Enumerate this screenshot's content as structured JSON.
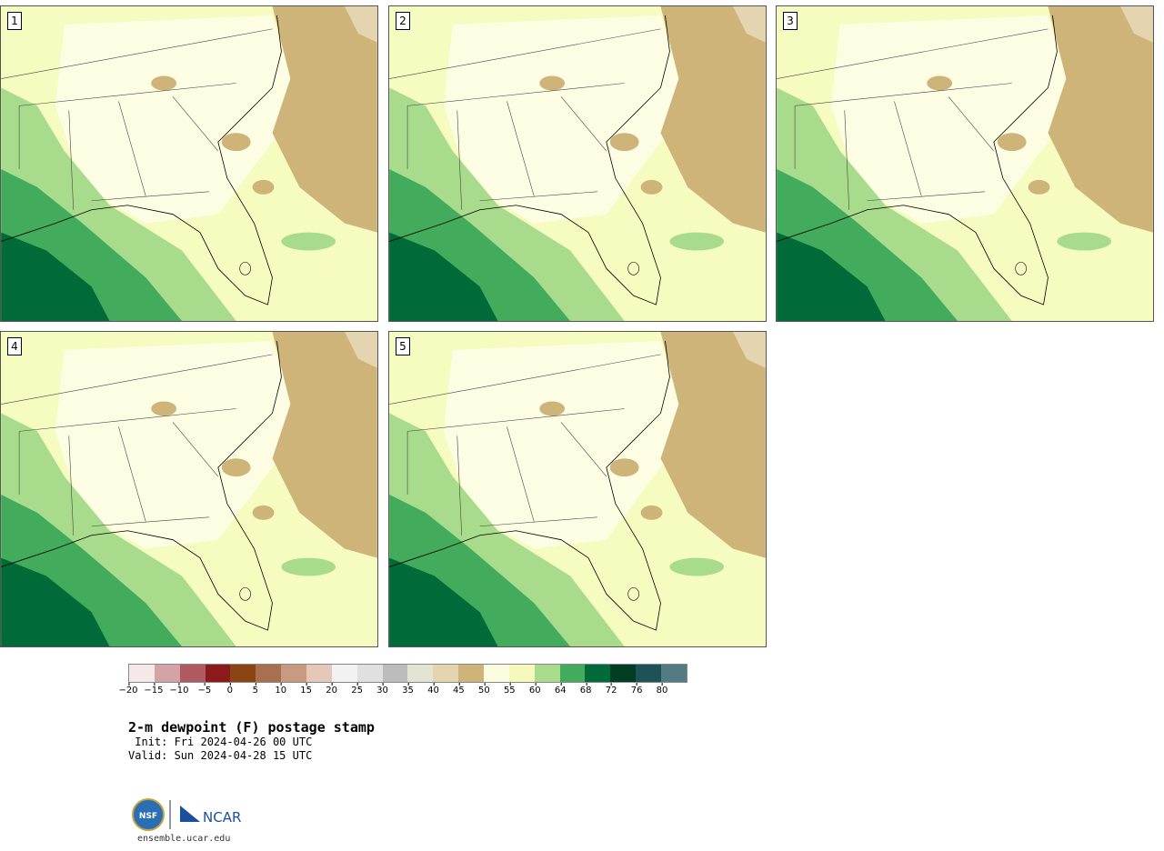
{
  "panels": [
    {
      "label": "1"
    },
    {
      "label": "2"
    },
    {
      "label": "3"
    },
    {
      "label": "4"
    },
    {
      "label": "5"
    }
  ],
  "colorbar": {
    "colors": [
      "#f5e8e8",
      "#d4a3a6",
      "#b05a60",
      "#8b1a1a",
      "#8b4513",
      "#a8704e",
      "#c89a80",
      "#e5c8b8",
      "#f2f2f2",
      "#e0e0e0",
      "#bcbcbc",
      "#e4e4d4",
      "#e4d4b0",
      "#cfb47a",
      "#fcfce0",
      "#f5fabc",
      "#a8dc8c",
      "#42ac5c",
      "#006b38",
      "#003d22",
      "#1d5356",
      "#527c82"
    ],
    "ticks": [
      "−20",
      "−15",
      "−10",
      "−5",
      "0",
      "5",
      "10",
      "15",
      "20",
      "25",
      "30",
      "35",
      "40",
      "45",
      "50",
      "55",
      "60",
      "64",
      "68",
      "72",
      "76",
      "80"
    ]
  },
  "title": "2-m dewpoint (F) postage stamp",
  "init": " Init: Fri 2024-04-26 00 UTC",
  "valid": "Valid: Sun 2024-04-28 15 UTC",
  "logo": {
    "nsf": "NSF",
    "ncar": "NCAR"
  },
  "site": "ensemble.ucar.edu"
}
